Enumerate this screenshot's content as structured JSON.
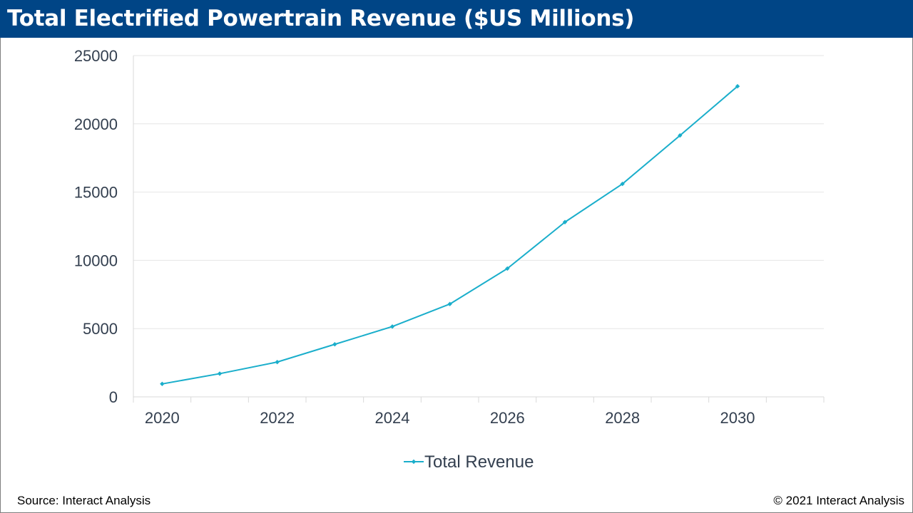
{
  "header": {
    "title": "Total Electrified Powertrain Revenue ($US Millions)"
  },
  "footer": {
    "source": "Source: Interact Analysis",
    "copyright": "© 2021 Interact Analysis"
  },
  "colors": {
    "title_bar": "#004586",
    "series_line": "#1aaecb",
    "gridline": "#e6e6e6",
    "axis_text": "#333f4f"
  },
  "chart_data": {
    "type": "line",
    "title": "Total Electrified Powertrain Revenue ($US Millions)",
    "xlabel": "",
    "ylabel": "",
    "x": [
      2020,
      2021,
      2022,
      2023,
      2024,
      2025,
      2026,
      2027,
      2028,
      2029,
      2030
    ],
    "x_tick_labels": [
      "2020",
      "2022",
      "2024",
      "2026",
      "2028",
      "2030"
    ],
    "y_tick_labels": [
      "0",
      "5000",
      "10000",
      "15000",
      "20000",
      "25000"
    ],
    "ylim": [
      0,
      25000
    ],
    "grid": "horizontal",
    "legend_position": "bottom",
    "series": [
      {
        "name": "Total Revenue",
        "marker": "diamond",
        "values": [
          950,
          1700,
          2550,
          3850,
          5150,
          6800,
          9400,
          12800,
          15600,
          19150,
          22750
        ]
      }
    ]
  }
}
